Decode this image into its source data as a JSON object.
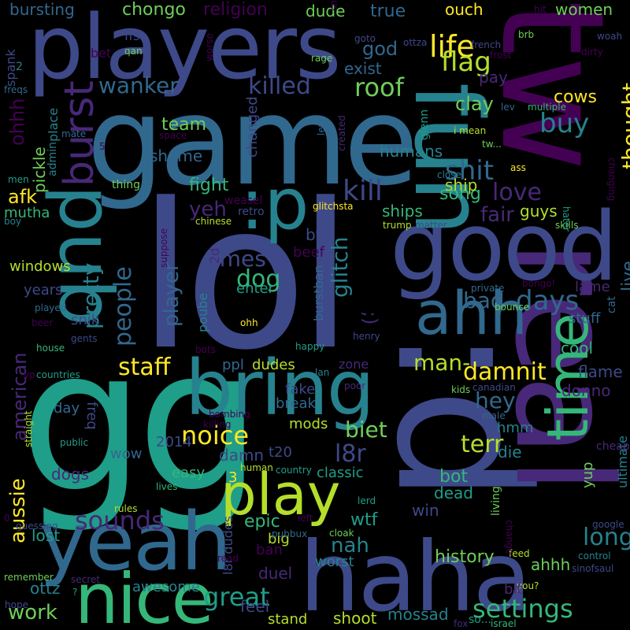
{
  "background": "#000000",
  "palette": [
    "#440154",
    "#482878",
    "#3e4989",
    "#31688e",
    "#26828e",
    "#1f9e89",
    "#35b779",
    "#6ece58",
    "#b5de2b",
    "#fde725"
  ],
  "words": [
    {
      "text": "lol",
      "color": "#3e4989"
    },
    {
      "text": "gg",
      "color": "#1f9e89"
    },
    {
      "text": ":d",
      "color": "#3e4989"
    },
    {
      "text": "game",
      "color": "#31688e"
    },
    {
      "text": "players",
      "color": "#3e4989"
    },
    {
      "text": "real",
      "color": "#482878"
    },
    {
      "text": "tw",
      "color": "#440154"
    },
    {
      "text": "good",
      "color": "#3e4989"
    },
    {
      "text": "fun",
      "color": "#26828e"
    },
    {
      "text": "bring",
      "color": "#26828e"
    },
    {
      "text": "haha",
      "color": "#3e4989"
    },
    {
      "text": "yeah",
      "color": "#31688e"
    },
    {
      "text": "play",
      "color": "#b5de2b"
    },
    {
      "text": "nice",
      "color": "#35b779"
    },
    {
      "text": "pub",
      "color": "#26828e"
    },
    {
      "text": ":p",
      "color": "#26828e"
    },
    {
      "text": "ahh",
      "color": "#31688e"
    },
    {
      "text": "time",
      "color": "#35b779"
    },
    {
      "text": "burst",
      "color": "#482878"
    },
    {
      "text": "life",
      "color": "#fde725"
    },
    {
      "text": "flag",
      "color": "#b5de2b"
    },
    {
      "text": "roof",
      "color": "#6ece58"
    },
    {
      "text": "killed",
      "color": "#3e4989"
    },
    {
      "text": "wanker",
      "color": "#31688e"
    },
    {
      "text": "kill",
      "color": "#3e4989"
    },
    {
      "text": "shit",
      "color": "#31688e"
    },
    {
      "text": "buy",
      "color": "#26828e"
    },
    {
      "text": "thought",
      "color": "#fde725"
    },
    {
      "text": "love",
      "color": "#482878"
    },
    {
      "text": "fair",
      "color": "#482878"
    },
    {
      "text": "people",
      "color": "#31688e"
    },
    {
      "text": "pretty",
      "color": "#26828e"
    },
    {
      "text": "times",
      "color": "#3e4989"
    },
    {
      "text": "yeh",
      "color": "#482878"
    },
    {
      "text": "player",
      "color": "#31688e"
    },
    {
      "text": "dog",
      "color": "#35b779"
    },
    {
      "text": "glitch",
      "color": "#26828e"
    },
    {
      "text": "days",
      "color": "#31688e"
    },
    {
      "text": "bad",
      "color": "#31688e"
    },
    {
      "text": "staff",
      "color": "#fde725"
    },
    {
      "text": "damnit",
      "color": "#fde725"
    },
    {
      "text": "man-",
      "color": "#b5de2b"
    },
    {
      "text": "hey",
      "color": "#31688e"
    },
    {
      "text": "noice",
      "color": "#fde725"
    },
    {
      "text": "biet",
      "color": "#6ece58"
    },
    {
      "text": "terr",
      "color": "#b5de2b"
    },
    {
      "text": "l8r",
      "color": "#3e4989"
    },
    {
      "text": "sounds",
      "color": "#482878"
    },
    {
      "text": "aussie",
      "color": "#fde725"
    },
    {
      "text": "long",
      "color": "#26828e"
    },
    {
      "text": "settings",
      "color": "#35b779"
    },
    {
      "text": "great",
      "color": "#1f9e89"
    },
    {
      "text": "work",
      "color": "#6ece58"
    },
    {
      "text": "history",
      "color": "#6ece58"
    },
    {
      "text": "nah",
      "color": "#26828e"
    },
    {
      "text": "wtf",
      "color": "#1f9e89"
    },
    {
      "text": "epic",
      "color": "#35b779"
    },
    {
      "text": "american",
      "color": "#482878"
    },
    {
      "text": "afk",
      "color": "#fde725"
    },
    {
      "text": "ohhh",
      "color": "#440154"
    },
    {
      "text": "pickle",
      "color": "#6ece58"
    },
    {
      "text": "team",
      "color": "#6ece58"
    },
    {
      "text": "shame",
      "color": "#31688e"
    },
    {
      "text": "fight",
      "color": "#35b779"
    },
    {
      "text": "changed",
      "color": "#3e4989"
    },
    {
      "text": "humans",
      "color": "#26828e"
    },
    {
      "text": "clay",
      "color": "#6ece58"
    },
    {
      "text": "cows",
      "color": "#fde725"
    },
    {
      "text": "pay",
      "color": "#482878"
    },
    {
      "text": "god",
      "color": "#31688e"
    },
    {
      "text": "exist",
      "color": "#31688e"
    },
    {
      "text": "chongo",
      "color": "#6ece58"
    },
    {
      "text": "religion",
      "color": "#440154"
    },
    {
      "text": "dude",
      "color": "#6ece58"
    },
    {
      "text": "true",
      "color": "#31688e"
    },
    {
      "text": "ouch",
      "color": "#fde725"
    },
    {
      "text": "women",
      "color": "#6ece58"
    },
    {
      "text": "bursting",
      "color": "#31688e"
    },
    {
      "text": "ffs",
      "color": "#3e4989"
    },
    {
      "text": "spank",
      "color": "#3e4989"
    },
    {
      "text": "bet",
      "color": "#440154"
    },
    {
      "text": "windows",
      "color": "#b5de2b"
    },
    {
      "text": "years",
      "color": "#3e4989"
    },
    {
      "text": "snik",
      "color": "#3e4989"
    },
    {
      "text": "mutha",
      "color": "#35b779"
    },
    {
      "text": "song",
      "color": "#35b779"
    },
    {
      "text": "guys",
      "color": "#b5de2b"
    },
    {
      "text": "ship",
      "color": "#b5de2b"
    },
    {
      "text": "ships",
      "color": "#35b779"
    },
    {
      "text": "bf",
      "color": "#3e4989"
    },
    {
      "text": "beef",
      "color": "#440154"
    },
    {
      "text": "live",
      "color": "#31688e"
    },
    {
      "text": "lame",
      "color": "#482878"
    },
    {
      "text": "stuff",
      "color": "#31688e"
    },
    {
      "text": "cool",
      "color": "#35b779"
    },
    {
      "text": "flame",
      "color": "#3e4989"
    },
    {
      "text": "donno",
      "color": "#482878"
    },
    {
      "text": "dudes",
      "color": "#b5de2b"
    },
    {
      "text": "ppl",
      "color": "#31688e"
    },
    {
      "text": "fake",
      "color": "#3e4989"
    },
    {
      "text": "break",
      "color": "#31688e"
    },
    {
      "text": "zone",
      "color": "#482878"
    },
    {
      "text": "mods",
      "color": "#b5de2b"
    },
    {
      "text": "damn",
      "color": "#3e4989"
    },
    {
      "text": "t20",
      "color": "#3e4989"
    },
    {
      "text": "classic",
      "color": "#1f9e89"
    },
    {
      "text": "bot",
      "color": "#35b779"
    },
    {
      "text": "dead",
      "color": "#1f9e89"
    },
    {
      "text": "win",
      "color": "#3e4989"
    },
    {
      "text": "die",
      "color": "#26828e"
    },
    {
      "text": "hmm",
      "color": "#26828e"
    },
    {
      "text": "yup",
      "color": "#6ece58"
    },
    {
      "text": "ultimate",
      "color": "#26828e"
    },
    {
      "text": "ahhh",
      "color": "#6ece58"
    },
    {
      "text": "worst",
      "color": "#26828e"
    },
    {
      "text": "duel",
      "color": "#482878"
    },
    {
      "text": "ban",
      "color": "#440154"
    },
    {
      "text": "l8r dudes",
      "color": "#3e4989"
    },
    {
      "text": "big",
      "color": "#b5de2b"
    },
    {
      "text": "lost",
      "color": "#1f9e89"
    },
    {
      "text": "ottz",
      "color": "#26828e"
    },
    {
      "text": "awesome",
      "color": "#26828e"
    },
    {
      "text": "feel",
      "color": "#3e4989"
    },
    {
      "text": "stand",
      "color": "#b5de2b"
    },
    {
      "text": "shoot",
      "color": "#b5de2b"
    },
    {
      "text": "mossad",
      "color": "#26828e"
    },
    {
      "text": "dogs",
      "color": "#482878"
    },
    {
      "text": "freq",
      "color": "#3e4989"
    },
    {
      "text": "wow",
      "color": "#31688e"
    },
    {
      "text": "easy",
      "color": "#35b779"
    },
    {
      "text": "2014",
      "color": "#3e4989"
    },
    {
      "text": "day",
      "color": "#31688e"
    },
    {
      "text": "enter",
      "color": "#1f9e89"
    },
    {
      "text": "burstban",
      "color": "#31688e"
    },
    {
      "text": "poube",
      "color": "#26828e"
    },
    {
      "text": "2d",
      "color": "#482878"
    },
    {
      "text": ";)",
      "color": "#482878"
    },
    {
      "text": "glitchsta",
      "color": "#fde725"
    },
    {
      "text": "retro",
      "color": "#3e4989"
    },
    {
      "text": "weasel",
      "color": "#440154"
    },
    {
      "text": "chinese",
      "color": "#b5de2b"
    },
    {
      "text": "trump",
      "color": "#b5de2b"
    },
    {
      "text": "matter",
      "color": "#3e4989"
    },
    {
      "text": "skills",
      "color": "#6ece58"
    },
    {
      "text": "hater",
      "color": "#1f9e89"
    },
    {
      "text": "changing",
      "color": "#440154"
    },
    {
      "text": "private",
      "color": "#31688e"
    },
    {
      "text": "bongo!",
      "color": "#440154"
    },
    {
      "text": "bounce",
      "color": "#6ece58"
    },
    {
      "text": "cat",
      "color": "#31688e"
    },
    {
      "text": "canadian",
      "color": "#3e4989"
    },
    {
      "text": "kids",
      "color": "#6ece58"
    },
    {
      "text": "bots",
      "color": "#440154"
    },
    {
      "text": "happy",
      "color": "#1f9e89"
    },
    {
      "text": "henry",
      "color": "#3e4989"
    },
    {
      "text": "lan",
      "color": "#26828e"
    },
    {
      "text": "poor",
      "color": "#482878"
    },
    {
      "text": "bombing",
      "color": "#440154"
    },
    {
      "text": "killing",
      "color": "#440154"
    },
    {
      "text": "3",
      "color": "#fde725"
    },
    {
      "text": "human",
      "color": "#b5de2b"
    },
    {
      "text": "country",
      "color": "#1f9e89"
    },
    {
      "text": "cheap",
      "color": "#482878"
    },
    {
      "text": "male",
      "color": "#31688e"
    },
    {
      "text": "google",
      "color": "#3e4989"
    },
    {
      "text": "control",
      "color": "#26828e"
    },
    {
      "text": "feed",
      "color": "#b5de2b"
    },
    {
      "text": "sinofsaul",
      "color": "#3e4989"
    },
    {
      "text": "you?",
      "color": "#b5de2b"
    },
    {
      "text": "fox",
      "color": "#482878"
    },
    {
      "text": "israel",
      "color": "#35b779"
    },
    {
      "text": "so...",
      "color": "#1f9e89"
    },
    {
      "text": "change",
      "color": "#440154"
    },
    {
      "text": "living",
      "color": "#6ece58"
    },
    {
      "text": "bit",
      "color": "#482878"
    },
    {
      "text": "lerd",
      "color": "#1f9e89"
    },
    {
      "text": "left",
      "color": "#440154"
    },
    {
      "text": "cloak",
      "color": "#6ece58"
    },
    {
      "text": "pubbux",
      "color": "#31688e"
    },
    {
      "text": "read",
      "color": "#440154"
    },
    {
      "text": "rules",
      "color": "#b5de2b"
    },
    {
      "text": "lives",
      "color": "#35b779"
    },
    {
      "text": "guessing",
      "color": "#3e4989"
    },
    {
      "text": "remember",
      "color": "#6ece58"
    },
    {
      "text": "secret",
      "color": "#482878"
    },
    {
      "text": "hope",
      "color": "#3e4989"
    },
    {
      "text": "?",
      "color": "#1f9e89"
    },
    {
      "text": "0",
      "color": "#440154"
    },
    {
      "text": "straight",
      "color": "#b5de2b"
    },
    {
      "text": "public",
      "color": "#1f9e89"
    },
    {
      "text": "gents",
      "color": "#3e4989"
    },
    {
      "text": "yp",
      "color": "#440154"
    },
    {
      "text": "countries",
      "color": "#1f9e89"
    },
    {
      "text": "beer",
      "color": "#440154"
    },
    {
      "text": "house",
      "color": "#35b779"
    },
    {
      "text": "played",
      "color": "#31688e"
    },
    {
      "text": "ohh",
      "color": "#fde725"
    },
    {
      "text": "suppose",
      "color": "#440154"
    },
    {
      "text": "thing",
      "color": "#6ece58"
    },
    {
      "text": "men",
      "color": "#1f9e89"
    },
    {
      "text": "boy",
      "color": "#26828e"
    },
    {
      "text": "admin",
      "color": "#26828e"
    },
    {
      "text": "place",
      "color": "#26828e"
    },
    {
      "text": "mate",
      "color": "#31688e"
    },
    {
      "text": "5",
      "color": "#440154"
    },
    {
      "text": "space",
      "color": "#440154"
    },
    {
      "text": "levi",
      "color": "#31688e"
    },
    {
      "text": "created",
      "color": "#482878"
    },
    {
      "text": "glenn",
      "color": "#1f9e89"
    },
    {
      "text": "i mean",
      "color": "#b5de2b"
    },
    {
      "text": "tw...",
      "color": "#6ece58"
    },
    {
      "text": "ass",
      "color": "#fde725"
    },
    {
      "text": "close",
      "color": "#26828e"
    },
    {
      "text": "lev",
      "color": "#31688e"
    },
    {
      "text": "multiple",
      "color": "#35b779"
    },
    {
      "text": "frost",
      "color": "#440154"
    },
    {
      "text": "french",
      "color": "#3e4989"
    },
    {
      "text": "ottza",
      "color": "#3e4989"
    },
    {
      "text": "goto",
      "color": "#3e4989"
    },
    {
      "text": "snip",
      "color": "#440154"
    },
    {
      "text": "rage",
      "color": "#6ece58"
    },
    {
      "text": "worse",
      "color": "#440154"
    },
    {
      "text": "qan",
      "color": "#6ece58"
    },
    {
      "text": "hit",
      "color": "#440154"
    },
    {
      "text": "brb",
      "color": "#6ece58"
    },
    {
      "text": "woah",
      "color": "#3e4989"
    },
    {
      "text": "dirty",
      "color": "#440154"
    },
    {
      "text": "2",
      "color": "#26828e"
    },
    {
      "text": "freqs",
      "color": "#31688e"
    }
  ]
}
